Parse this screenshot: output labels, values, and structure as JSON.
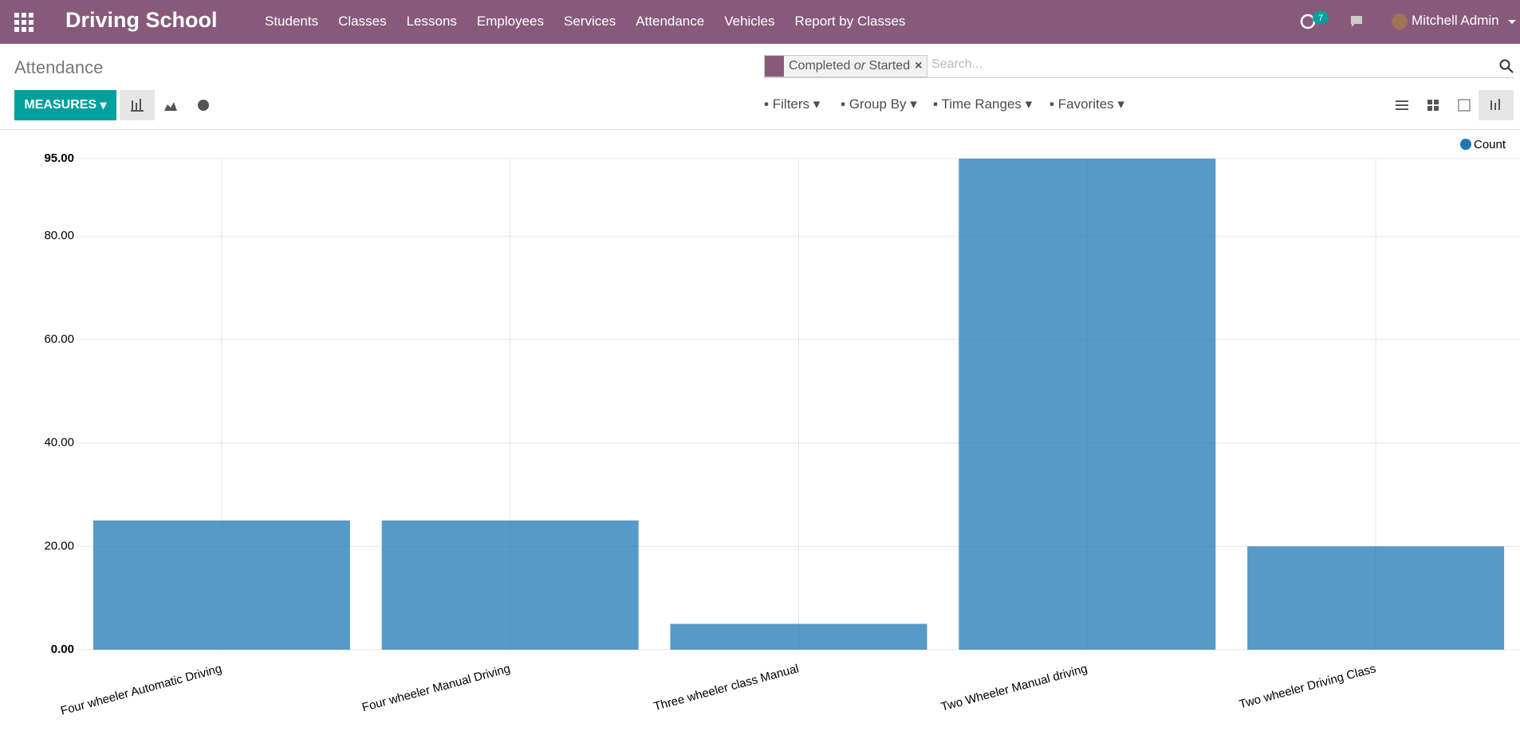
{
  "navbar": {
    "app_name": "Driving School",
    "menu": [
      "Students",
      "Classes",
      "Lessons",
      "Employees",
      "Services",
      "Attendance",
      "Vehicles",
      "Report by Classes"
    ],
    "activity_count": "7",
    "user": "Mitchell Admin"
  },
  "control_panel": {
    "breadcrumb": "Attendance",
    "facet": {
      "first": "Completed",
      "separator": "or",
      "second": "Started"
    },
    "search_placeholder": "Search...",
    "measures": "MEASURES",
    "filters": [
      "Filters",
      "Group By",
      "Time Ranges",
      "Favorites"
    ]
  },
  "chart_data": {
    "type": "bar",
    "categories": [
      "Four wheeler Automatic Driving",
      "Four wheeler Manual Driving",
      "Three wheeler class Manual",
      "Two Wheeler Manual driving",
      "Two wheeler Driving Class"
    ],
    "series": [
      {
        "name": "Count",
        "color": "#1f77b4",
        "values": [
          25,
          25,
          5,
          95,
          20
        ]
      }
    ],
    "ylim": [
      0,
      95
    ],
    "yticks": [
      {
        "value": 0,
        "label": "0.00"
      },
      {
        "value": 20,
        "label": "20.00"
      },
      {
        "value": 40,
        "label": "40.00"
      },
      {
        "value": 60,
        "label": "60.00"
      },
      {
        "value": 80,
        "label": "80.00"
      },
      {
        "value": 95,
        "label": "95.00"
      }
    ],
    "grid": true,
    "legend": "top-right"
  }
}
